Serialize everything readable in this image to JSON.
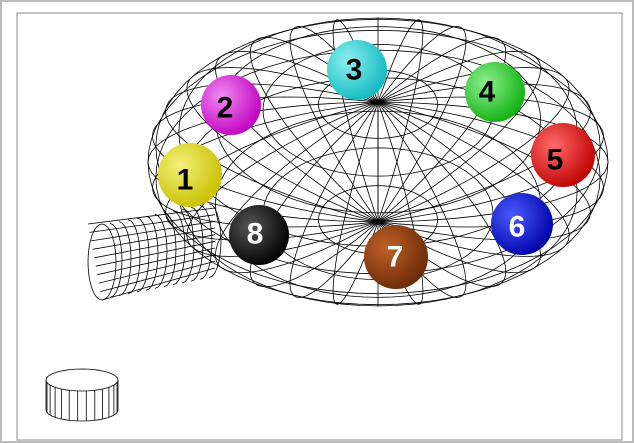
{
  "nodes": [
    {
      "label": "1"
    },
    {
      "label": "2"
    },
    {
      "label": "3"
    },
    {
      "label": "4"
    },
    {
      "label": "5"
    },
    {
      "label": "6"
    },
    {
      "label": "7"
    },
    {
      "label": "8"
    }
  ]
}
